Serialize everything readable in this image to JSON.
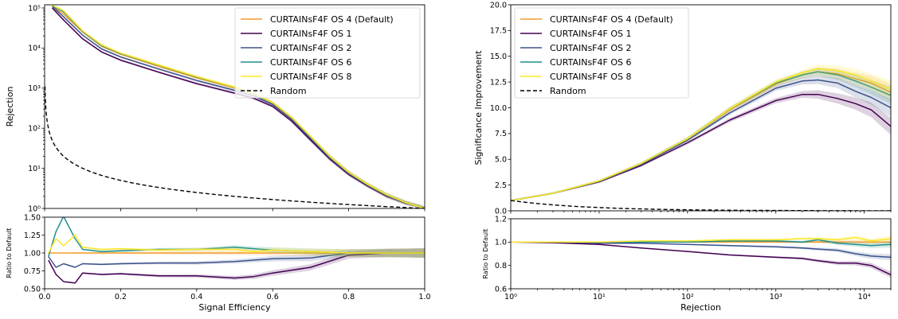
{
  "colors": {
    "os4": "#f39c2a",
    "os1": "#440154",
    "os2": "#3b528b",
    "os6": "#21918c",
    "os8": "#fde725",
    "random": "#000000"
  },
  "legend": {
    "os4": "CURTAINsF4F OS 4 (Default)",
    "os1": "CURTAINsF4F OS 1",
    "os2": "CURTAINsF4F OS 2",
    "os6": "CURTAINsF4F OS 6",
    "os8": "CURTAINsF4F OS 8",
    "random": "Random"
  },
  "chart_data": [
    {
      "type": "line",
      "panel": "left-main",
      "xlabel": "Signal Efficiency",
      "ylabel": "Rejection",
      "yscale": "log",
      "xlim": [
        0.0,
        1.0
      ],
      "ylim": [
        1,
        120000
      ],
      "xticks": [
        "0.0",
        "0.2",
        "0.4",
        "0.6",
        "0.8",
        "1.0"
      ],
      "yticks": [
        {
          "v": 1,
          "label": "10⁰"
        },
        {
          "v": 10,
          "label": "10¹"
        },
        {
          "v": 100,
          "label": "10²"
        },
        {
          "v": 1000,
          "label": "10³"
        },
        {
          "v": 10000,
          "label": "10⁴"
        },
        {
          "v": 100000,
          "label": "10⁵"
        }
      ],
      "legend_loc": "upper right",
      "x": [
        0.02,
        0.05,
        0.1,
        0.15,
        0.2,
        0.3,
        0.4,
        0.5,
        0.55,
        0.6,
        0.65,
        0.7,
        0.75,
        0.8,
        0.85,
        0.9,
        0.95,
        1.0
      ],
      "series": [
        {
          "key": "os4",
          "values": [
            110000,
            70000,
            25000,
            11000,
            7000,
            3500,
            1800,
            1000,
            700,
            420,
            180,
            60,
            20,
            8,
            4,
            2.2,
            1.4,
            1.0
          ]
        },
        {
          "key": "os1",
          "values": [
            100000,
            50000,
            17000,
            8000,
            5000,
            2500,
            1300,
            750,
            560,
            350,
            150,
            50,
            17,
            7,
            3.6,
            2.0,
            1.35,
            1.0
          ]
        },
        {
          "key": "os2",
          "values": [
            110000,
            60000,
            21000,
            9500,
            6000,
            3000,
            1550,
            880,
            640,
            390,
            165,
            55,
            18,
            7.5,
            3.8,
            2.1,
            1.38,
            1.0
          ]
        },
        {
          "key": "os6",
          "values": [
            115000,
            80000,
            26000,
            11500,
            7300,
            3700,
            1900,
            1050,
            730,
            435,
            185,
            61,
            20,
            8,
            4,
            2.2,
            1.4,
            1.0
          ]
        },
        {
          "key": "os8",
          "values": [
            118000,
            85000,
            27000,
            12000,
            7500,
            3800,
            1950,
            1060,
            735,
            440,
            186,
            62,
            20,
            8,
            4,
            2.2,
            1.4,
            1.0
          ]
        },
        {
          "key": "random",
          "style": "dashed",
          "function": "1/x"
        }
      ]
    },
    {
      "type": "line",
      "panel": "left-ratio",
      "xlabel": "Signal Efficiency",
      "ylabel": "Ratio to Default",
      "xlim": [
        0.0,
        1.0
      ],
      "ylim": [
        0.5,
        1.5
      ],
      "xticks": [
        "0.0",
        "0.2",
        "0.4",
        "0.6",
        "0.8",
        "1.0"
      ],
      "yticks": [
        "0.50",
        "0.75",
        "1.00",
        "1.25",
        "1.50"
      ],
      "x": [
        0.01,
        0.03,
        0.05,
        0.08,
        0.1,
        0.15,
        0.2,
        0.3,
        0.4,
        0.5,
        0.55,
        0.6,
        0.7,
        0.8,
        0.9,
        1.0
      ],
      "series": [
        {
          "key": "os4",
          "values": [
            1.0,
            1.0,
            1.0,
            1.0,
            1.0,
            1.0,
            1.0,
            1.0,
            1.0,
            1.0,
            1.0,
            1.0,
            1.0,
            1.0,
            1.0,
            1.0
          ]
        },
        {
          "key": "os1",
          "values": [
            0.9,
            0.7,
            0.6,
            0.58,
            0.72,
            0.7,
            0.71,
            0.68,
            0.68,
            0.65,
            0.67,
            0.72,
            0.8,
            0.97,
            1.0,
            1.0
          ]
        },
        {
          "key": "os2",
          "values": [
            0.95,
            0.8,
            0.85,
            0.8,
            0.85,
            0.84,
            0.85,
            0.86,
            0.86,
            0.88,
            0.9,
            0.92,
            0.93,
            1.0,
            1.0,
            1.0
          ]
        },
        {
          "key": "os6",
          "values": [
            0.95,
            1.3,
            1.6,
            1.2,
            1.05,
            1.02,
            1.03,
            1.05,
            1.05,
            1.08,
            1.06,
            1.04,
            1.02,
            1.0,
            1.0,
            1.0
          ]
        },
        {
          "key": "os8",
          "values": [
            1.0,
            1.2,
            1.1,
            1.25,
            1.08,
            1.05,
            1.06,
            1.04,
            1.05,
            1.05,
            1.02,
            1.04,
            1.02,
            1.0,
            1.0,
            1.0
          ]
        }
      ]
    },
    {
      "type": "line",
      "panel": "right-main",
      "xlabel": "Rejection",
      "ylabel": "Significance Improvement",
      "xscale": "log",
      "xlim": [
        1,
        20000
      ],
      "ylim": [
        0.0,
        20.0
      ],
      "yticks": [
        "0.0",
        "2.5",
        "5.0",
        "7.5",
        "10.0",
        "12.5",
        "15.0",
        "17.5",
        "20.0"
      ],
      "legend_loc": "upper left",
      "x": [
        1,
        3,
        10,
        30,
        100,
        300,
        1000,
        2000,
        3000,
        5000,
        8000,
        12000,
        20000
      ],
      "series": [
        {
          "key": "os4",
          "values": [
            1.0,
            1.7,
            2.9,
            4.6,
            7.0,
            9.8,
            12.3,
            13.2,
            13.5,
            13.3,
            12.8,
            12.4,
            11.5
          ]
        },
        {
          "key": "os1",
          "values": [
            1.0,
            1.7,
            2.8,
            4.4,
            6.6,
            8.8,
            10.7,
            11.3,
            11.3,
            10.9,
            10.4,
            9.8,
            8.2
          ]
        },
        {
          "key": "os2",
          "values": [
            1.0,
            1.7,
            2.85,
            4.5,
            6.85,
            9.5,
            11.9,
            12.6,
            12.7,
            12.4,
            11.6,
            11.0,
            10.0
          ]
        },
        {
          "key": "os6",
          "values": [
            1.0,
            1.7,
            2.9,
            4.6,
            7.0,
            9.9,
            12.4,
            13.2,
            13.5,
            13.2,
            12.6,
            12.0,
            11.2
          ]
        },
        {
          "key": "os8",
          "values": [
            1.0,
            1.7,
            2.9,
            4.6,
            7.0,
            9.9,
            12.5,
            13.4,
            13.8,
            13.6,
            13.2,
            12.6,
            11.8
          ]
        },
        {
          "key": "random",
          "style": "dashed",
          "function": "1/sqrt(x)"
        }
      ]
    },
    {
      "type": "line",
      "panel": "right-ratio",
      "xlabel": "Rejection",
      "ylabel": "Ratio to Default",
      "xscale": "log",
      "xlim": [
        1,
        20000
      ],
      "ylim": [
        0.6,
        1.2
      ],
      "xticks": [
        {
          "v": 1,
          "label": "10⁰"
        },
        {
          "v": 10,
          "label": "10¹"
        },
        {
          "v": 100,
          "label": "10²"
        },
        {
          "v": 1000,
          "label": "10³"
        },
        {
          "v": 10000,
          "label": "10⁴"
        }
      ],
      "yticks": [
        "0.6",
        "0.8",
        "1.0",
        "1.2"
      ],
      "x": [
        1,
        3,
        10,
        30,
        100,
        300,
        1000,
        2000,
        3000,
        5000,
        8000,
        12000,
        20000
      ],
      "series": [
        {
          "key": "os4",
          "values": [
            1.0,
            1.0,
            1.0,
            1.0,
            1.0,
            1.0,
            1.0,
            1.0,
            1.0,
            1.0,
            1.0,
            1.0,
            1.0
          ]
        },
        {
          "key": "os1",
          "values": [
            1.0,
            0.995,
            0.98,
            0.95,
            0.92,
            0.89,
            0.87,
            0.86,
            0.84,
            0.82,
            0.82,
            0.8,
            0.72
          ]
        },
        {
          "key": "os2",
          "values": [
            1.0,
            1.0,
            0.99,
            0.99,
            0.98,
            0.97,
            0.96,
            0.95,
            0.94,
            0.93,
            0.9,
            0.88,
            0.87
          ]
        },
        {
          "key": "os6",
          "values": [
            1.0,
            1.0,
            1.0,
            1.0,
            1.0,
            1.01,
            1.01,
            1.0,
            1.02,
            0.99,
            0.98,
            0.97,
            0.98
          ]
        },
        {
          "key": "os8",
          "values": [
            1.0,
            1.0,
            1.0,
            1.01,
            1.01,
            1.02,
            1.02,
            1.03,
            1.03,
            1.02,
            1.04,
            1.01,
            1.03
          ]
        }
      ]
    }
  ]
}
